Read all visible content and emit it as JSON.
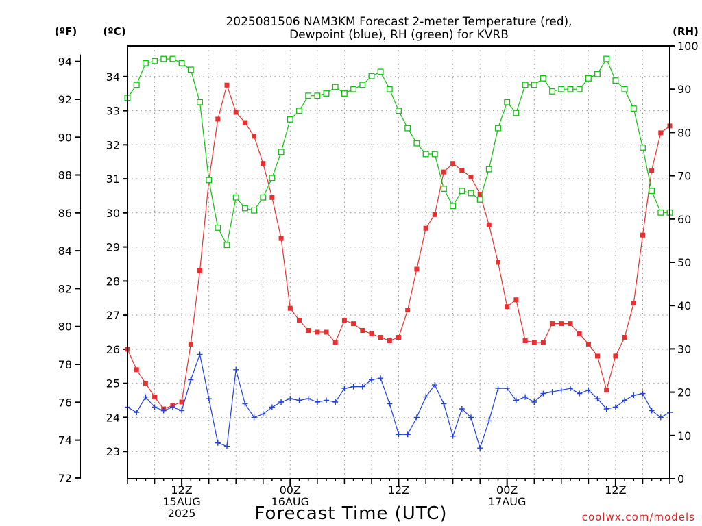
{
  "chart_data": {
    "type": "line",
    "title_lines": [
      "2025081506 NAM3KM Forecast 2-meter Temperature (red),",
      "Dewpoint (blue), RH (green) for KVRB"
    ],
    "xlabel": "Forecast Time (UTC)",
    "credit": "coolwx.com/models",
    "unit_labels": {
      "f": "(ºF)",
      "c": "(ºC)",
      "rh": "(RH)"
    },
    "grid": true,
    "x_hours_range": [
      0,
      60
    ],
    "x_ticks": [
      {
        "h": 6,
        "lines": [
          "12Z",
          "15AUG",
          "2025"
        ]
      },
      {
        "h": 18,
        "lines": [
          "00Z",
          "16AUG"
        ]
      },
      {
        "h": 30,
        "lines": [
          "12Z"
        ]
      },
      {
        "h": 42,
        "lines": [
          "00Z",
          "17AUG"
        ]
      },
      {
        "h": 54,
        "lines": [
          "12Z"
        ]
      }
    ],
    "y_celsius_range": [
      22.2,
      34.9
    ],
    "y_celsius_ticks": [
      "23",
      "24",
      "25",
      "26",
      "27",
      "28",
      "29",
      "30",
      "31",
      "32",
      "33",
      "34"
    ],
    "y_fahrenheit_ticks": [
      "72",
      "74",
      "76",
      "78",
      "80",
      "82",
      "84",
      "86",
      "88",
      "90",
      "92",
      "94"
    ],
    "y_rh_range": [
      0,
      100
    ],
    "y_rh_ticks": [
      "0",
      "10",
      "20",
      "30",
      "40",
      "50",
      "60",
      "70",
      "80",
      "90",
      "100"
    ],
    "series": [
      {
        "name": "Temperature",
        "unit": "C",
        "color": "#e83030",
        "marker": "filled-square",
        "values": [
          26.0,
          25.4,
          25.0,
          24.6,
          24.25,
          24.35,
          24.45,
          26.15,
          28.3,
          30.95,
          32.75,
          33.75,
          32.95,
          32.65,
          32.25,
          31.45,
          30.45,
          29.25,
          27.2,
          26.85,
          26.55,
          26.5,
          26.5,
          26.2,
          26.85,
          26.75,
          26.55,
          26.45,
          26.35,
          26.25,
          26.35,
          27.15,
          28.35,
          29.55,
          29.95,
          31.2,
          31.45,
          31.25,
          31.05,
          30.55,
          29.65,
          28.55,
          27.25,
          27.45,
          26.25,
          26.2,
          26.2,
          26.75,
          26.75,
          26.75,
          26.45,
          26.15,
          25.8,
          24.8,
          25.8,
          26.35,
          27.35,
          29.35,
          31.25,
          32.35,
          32.55
        ]
      },
      {
        "name": "Dewpoint",
        "unit": "C",
        "color": "#2040e0",
        "marker": "plus",
        "values": [
          24.3,
          24.15,
          24.6,
          24.3,
          24.2,
          24.3,
          24.2,
          25.1,
          25.85,
          24.55,
          23.25,
          23.15,
          25.4,
          24.4,
          24.0,
          24.1,
          24.3,
          24.45,
          24.55,
          24.5,
          24.55,
          24.45,
          24.5,
          24.45,
          24.85,
          24.9,
          24.9,
          25.1,
          25.15,
          24.4,
          23.5,
          23.5,
          24.0,
          24.6,
          24.95,
          24.4,
          23.45,
          24.25,
          24.0,
          23.1,
          23.9,
          24.85,
          24.85,
          24.5,
          24.6,
          24.45,
          24.7,
          24.75,
          24.8,
          24.85,
          24.7,
          24.8,
          24.55,
          24.25,
          24.3,
          24.5,
          24.65,
          24.7,
          24.2,
          24.0,
          24.15
        ]
      },
      {
        "name": "RH",
        "unit": "%",
        "color": "#10c010",
        "marker": "open-square",
        "values": [
          88,
          91,
          96,
          96.5,
          97,
          97,
          96,
          94.5,
          87,
          69,
          58,
          54,
          65,
          62.5,
          62,
          65,
          69.5,
          75.5,
          83,
          85,
          88.5,
          88.5,
          89,
          90.5,
          89,
          90,
          91,
          93,
          94,
          90,
          85,
          81,
          77.5,
          75,
          75,
          67,
          63,
          66.5,
          66,
          64.5,
          71.5,
          81,
          87,
          84.5,
          91,
          91,
          92.5,
          89.5,
          90,
          90,
          90,
          92.5,
          93.5,
          97,
          92,
          90,
          85.5,
          76.5,
          66.5,
          61.5,
          61.5
        ]
      }
    ]
  }
}
